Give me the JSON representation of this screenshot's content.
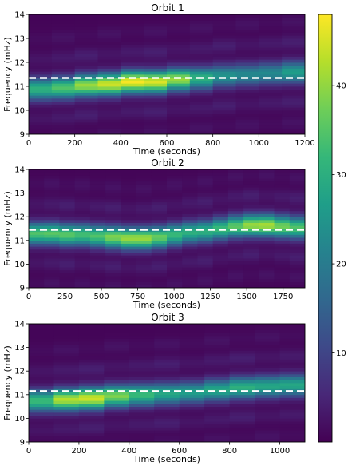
{
  "chart_data": [
    {
      "type": "heatmap",
      "title": "Orbit 1",
      "xlabel": "Time (seconds)",
      "ylabel": "Frequency (mHz)",
      "xlim": [
        0,
        1200
      ],
      "ylim": [
        9,
        14
      ],
      "xticks": [
        0,
        200,
        400,
        600,
        800,
        1000,
        1200
      ],
      "yticks": [
        9,
        10,
        11,
        12,
        13,
        14
      ],
      "time_bins": [
        0,
        100,
        200,
        300,
        400,
        500,
        600,
        700,
        800,
        900,
        1000,
        1100,
        1200
      ],
      "ridge_frequency": [
        10.9,
        10.95,
        11.05,
        11.1,
        11.2,
        11.2,
        11.3,
        11.35,
        11.45,
        11.5,
        11.55,
        11.6
      ],
      "ridge_peak": [
        30,
        34,
        40,
        44,
        47,
        45,
        40,
        30,
        24,
        22,
        22,
        26
      ],
      "reference_frequency": 11.35
    },
    {
      "type": "heatmap",
      "title": "Orbit 2",
      "xlabel": "Time (seconds)",
      "ylabel": "Frequency (mHz)",
      "xlim": [
        0,
        1900
      ],
      "ylim": [
        9,
        14
      ],
      "xticks": [
        0,
        250,
        500,
        750,
        1000,
        1250,
        1500,
        1750
      ],
      "yticks": [
        9,
        10,
        11,
        12,
        13,
        14
      ],
      "time_bins": [
        0,
        105.6,
        211.1,
        316.7,
        422.2,
        527.8,
        633.3,
        738.9,
        844.4,
        950,
        1055.6,
        1161.1,
        1266.7,
        1372.2,
        1477.8,
        1583.3,
        1688.9,
        1794.4,
        1900
      ],
      "ridge_frequency": [
        11.3,
        11.3,
        11.25,
        11.25,
        11.2,
        11.15,
        11.1,
        11.1,
        11.15,
        11.25,
        11.35,
        11.4,
        11.5,
        11.6,
        11.65,
        11.65,
        11.6,
        11.55
      ],
      "ridge_peak": [
        34,
        35,
        35,
        33,
        34,
        38,
        40,
        40,
        36,
        32,
        30,
        30,
        32,
        35,
        40,
        41,
        37,
        34
      ],
      "reference_frequency": 11.45
    },
    {
      "type": "heatmap",
      "title": "Orbit 3",
      "xlabel": "Time (seconds)",
      "ylabel": "Frequency (mHz)",
      "xlim": [
        0,
        1100
      ],
      "ylim": [
        9,
        14
      ],
      "xticks": [
        0,
        200,
        400,
        600,
        800,
        1000
      ],
      "yticks": [
        9,
        10,
        11,
        12,
        13,
        14
      ],
      "time_bins": [
        0,
        100,
        200,
        300,
        400,
        500,
        600,
        700,
        800,
        900,
        1000,
        1100
      ],
      "ridge_frequency": [
        10.75,
        10.8,
        10.85,
        10.95,
        11.0,
        11.05,
        11.1,
        11.2,
        11.3,
        11.35,
        11.4
      ],
      "ridge_peak": [
        32,
        42,
        44,
        38,
        32,
        28,
        26,
        28,
        30,
        28,
        28
      ],
      "reference_frequency": 11.15
    },
    {
      "type": "colorbar",
      "colormap": "viridis",
      "range": [
        0,
        48
      ],
      "ticks": [
        10,
        20,
        30,
        40
      ]
    }
  ]
}
